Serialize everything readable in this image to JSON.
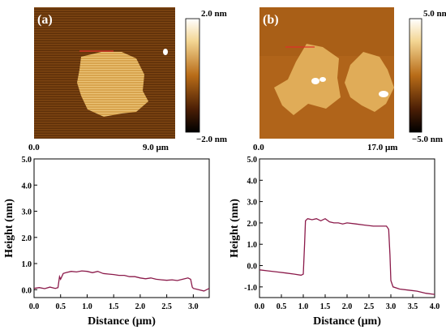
{
  "colors": {
    "profile_line": "#8b1a4a",
    "scan_line": "#e0302a",
    "afm_dark": "#2a1204",
    "afm_mid": "#b06a1c",
    "afm_light": "#f7dc9c"
  },
  "panels": [
    {
      "id": "a",
      "label": "(a)",
      "scale_left": "0.0",
      "scale_right": "9.0 μm",
      "colorbar_top": "2.0 nm",
      "colorbar_bottom": "−2.0 nm"
    },
    {
      "id": "b",
      "label": "(b)",
      "scale_left": "0.0",
      "scale_right": "17.0 μm",
      "colorbar_top": "5.0 nm",
      "colorbar_bottom": "−5.0 nm"
    }
  ],
  "chart_data": [
    {
      "type": "line",
      "xlabel": "Distance (μm)",
      "ylabel": "Height (nm)",
      "xlim": [
        0,
        3.3
      ],
      "ylim": [
        -0.3,
        5.0
      ],
      "x_ticks": [
        "0.0",
        "0.5",
        "1.0",
        "1.5",
        "2.0",
        "2.5",
        "3.0"
      ],
      "x_tick_values": [
        0,
        0.5,
        1.0,
        1.5,
        2.0,
        2.5,
        3.0
      ],
      "y_ticks": [
        "0.0",
        "1.0",
        "2.0",
        "3.0",
        "4.0",
        "5.0"
      ],
      "y_tick_values": [
        0,
        1,
        2,
        3,
        4,
        5
      ],
      "series": [
        {
          "x": [
            0.0,
            0.1,
            0.2,
            0.3,
            0.4,
            0.45,
            0.48,
            0.5,
            0.55,
            0.6,
            0.7,
            0.8,
            0.9,
            1.0,
            1.1,
            1.2,
            1.3,
            1.4,
            1.5,
            1.6,
            1.7,
            1.8,
            1.9,
            2.0,
            2.1,
            2.2,
            2.3,
            2.4,
            2.5,
            2.6,
            2.7,
            2.8,
            2.9,
            2.95,
            2.98,
            3.0,
            3.1,
            3.2,
            3.3
          ],
          "y": [
            0.05,
            0.08,
            0.04,
            0.1,
            0.05,
            0.08,
            0.5,
            0.4,
            0.62,
            0.65,
            0.7,
            0.68,
            0.72,
            0.7,
            0.65,
            0.7,
            0.62,
            0.6,
            0.58,
            0.55,
            0.55,
            0.5,
            0.5,
            0.45,
            0.42,
            0.45,
            0.4,
            0.38,
            0.36,
            0.38,
            0.35,
            0.4,
            0.45,
            0.4,
            0.1,
            0.05,
            0.0,
            -0.05,
            0.05
          ]
        }
      ]
    },
    {
      "type": "line",
      "xlabel": "Distance (μm)",
      "ylabel": "Height (nm)",
      "xlim": [
        0,
        4.0
      ],
      "ylim": [
        -1.5,
        5.0
      ],
      "x_ticks": [
        "0.0",
        "0.5",
        "1.0",
        "1.5",
        "2.0",
        "2.5",
        "3.0",
        "3.5",
        "4.0"
      ],
      "x_tick_values": [
        0,
        0.5,
        1.0,
        1.5,
        2.0,
        2.5,
        3.0,
        3.5,
        4.0
      ],
      "y_ticks": [
        "-1.0",
        "0.0",
        "1.0",
        "2.0",
        "3.0",
        "4.0",
        "5.0"
      ],
      "y_tick_values": [
        -1,
        0,
        1,
        2,
        3,
        4,
        5
      ],
      "series": [
        {
          "x": [
            0.0,
            0.2,
            0.4,
            0.6,
            0.8,
            0.95,
            1.0,
            1.03,
            1.05,
            1.1,
            1.2,
            1.3,
            1.4,
            1.5,
            1.6,
            1.7,
            1.8,
            1.9,
            2.0,
            2.2,
            2.4,
            2.6,
            2.8,
            2.9,
            2.95,
            2.98,
            3.0,
            3.05,
            3.2,
            3.4,
            3.6,
            3.8,
            4.0
          ],
          "y": [
            -0.2,
            -0.25,
            -0.3,
            -0.35,
            -0.4,
            -0.45,
            -0.4,
            1.0,
            2.1,
            2.2,
            2.15,
            2.2,
            2.1,
            2.2,
            2.05,
            2.0,
            2.0,
            1.95,
            2.0,
            1.95,
            1.9,
            1.85,
            1.85,
            1.85,
            1.7,
            0.5,
            -0.7,
            -1.0,
            -1.1,
            -1.15,
            -1.2,
            -1.3,
            -1.35
          ]
        }
      ]
    }
  ]
}
